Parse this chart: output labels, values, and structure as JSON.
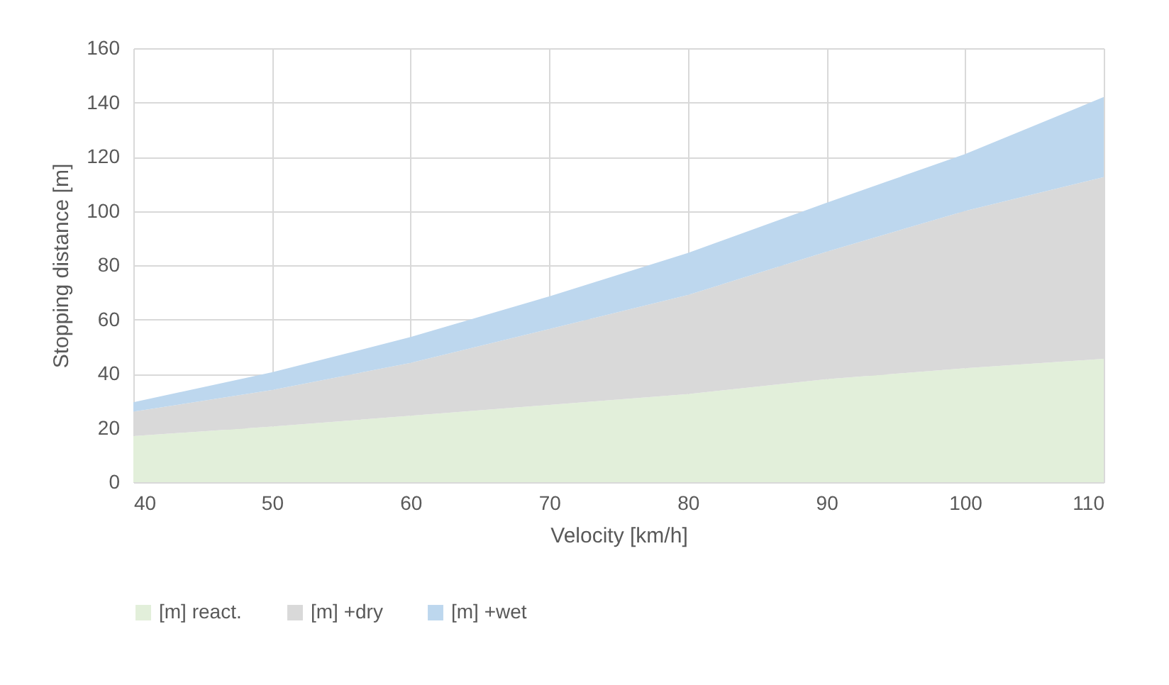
{
  "chart_data": {
    "type": "area",
    "stacked": true,
    "xlabel": "Velocity [km/h]",
    "ylabel": "Stopping distance [m]",
    "x": [
      40,
      50,
      60,
      70,
      80,
      90,
      100,
      110
    ],
    "series": [
      {
        "name": "[m] react.",
        "color": "#e2efda",
        "values": [
          17,
          20.5,
          24.5,
          28.5,
          32.5,
          38,
          42,
          45.5
        ]
      },
      {
        "name": "[m] +dry",
        "color": "#d9d9d9",
        "values": [
          9,
          13.5,
          19.5,
          28,
          36.5,
          47,
          58,
          67
        ]
      },
      {
        "name": "[m] +wet",
        "color": "#bdd7ee",
        "values": [
          3.5,
          6.5,
          9.5,
          12,
          15.5,
          18,
          21,
          29.5
        ]
      }
    ],
    "xlim": [
      40,
      110
    ],
    "xticks": [
      40,
      50,
      60,
      70,
      80,
      90,
      100,
      110
    ],
    "ylim": [
      0,
      160
    ],
    "yticks": [
      0,
      20,
      40,
      60,
      80,
      100,
      120,
      140,
      160
    ],
    "grid": true,
    "legend": "bottom"
  }
}
